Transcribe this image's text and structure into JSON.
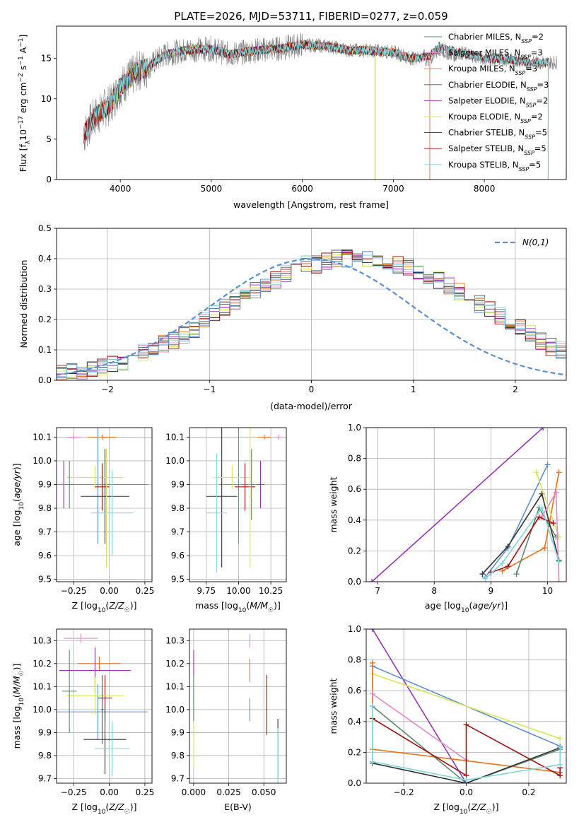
{
  "title": "PLATE=2026, MJD=53711, FIBERID=0277, z=0.059",
  "colors": {
    "chabrier_miles": "#5a8a6a",
    "salpeter_miles": "#e986c9",
    "kroupa_miles": "#e8731a",
    "chabrier_elodie": "#555555",
    "salpeter_elodie": "#9932b8",
    "kroupa_elodie": "#d4e85a",
    "chabrier_stelib": "#333333",
    "salpeter_stelib": "#a01010",
    "kroupa_stelib": "#7fd6dc",
    "gauss": "#5b8fd0"
  },
  "chart_data": [
    {
      "type": "line",
      "id": "spectrum",
      "xlabel": "wavelength [Angstrom, rest frame]",
      "ylabel": "Flux [f_λ10^-17 erg cm^-2 s^-1 A^-1]",
      "xlim": [
        3300,
        8900
      ],
      "ylim": [
        0,
        19
      ],
      "xticks": [
        4000,
        5000,
        6000,
        7000,
        8000
      ],
      "yticks": [
        0,
        5,
        10,
        15
      ],
      "grid": false,
      "legend_position": "top-right",
      "legend": [
        {
          "label": "Chabrier MILES, N",
          "sub": "SSP",
          "suffix": "=2",
          "color_key": "chabrier_miles"
        },
        {
          "label": "Salpeter MILES, N",
          "sub": "SSP",
          "suffix": "=3",
          "color_key": "salpeter_miles"
        },
        {
          "label": "Kroupa MILES, N",
          "sub": "SSP",
          "suffix": "=3",
          "color_key": "kroupa_miles"
        },
        {
          "label": "Chabrier ELODIE, N",
          "sub": "SSP",
          "suffix": "=3",
          "color_key": "chabrier_elodie"
        },
        {
          "label": "Salpeter ELODIE, N",
          "sub": "SSP",
          "suffix": "=2",
          "color_key": "salpeter_elodie"
        },
        {
          "label": "Kroupa ELODIE, N",
          "sub": "SSP",
          "suffix": "=2",
          "color_key": "kroupa_elodie"
        },
        {
          "label": "Chabrier STELIB, N",
          "sub": "SSP",
          "suffix": "=5",
          "color_key": "chabrier_stelib"
        },
        {
          "label": "Salpeter STELIB, N",
          "sub": "SSP",
          "suffix": "=5",
          "color_key": "salpeter_stelib"
        },
        {
          "label": "Kroupa STELIB, N",
          "sub": "SSP",
          "suffix": "=5",
          "color_key": "kroupa_stelib"
        }
      ],
      "continuum": {
        "x": [
          3600,
          3700,
          3800,
          3900,
          4000,
          4100,
          4200,
          4300,
          4400,
          4500,
          4700,
          5000,
          5200,
          5500,
          5800,
          6000,
          6300,
          6500,
          6700,
          7000,
          7200,
          7400,
          7500,
          7700,
          8000,
          8300,
          8500,
          8800
        ],
        "y": [
          5.5,
          7.5,
          8.5,
          9.5,
          11.5,
          12.5,
          13.5,
          13.8,
          14.8,
          15.5,
          16.0,
          16.2,
          15.5,
          16.0,
          16.3,
          16.7,
          16.5,
          16.0,
          16.0,
          15.8,
          15.0,
          15.3,
          16.5,
          15.8,
          15.0,
          14.8,
          14.5,
          14.5
        ]
      }
    },
    {
      "type": "bar",
      "id": "residual-histogram",
      "xlabel": "(data-model)/error",
      "ylabel": "Normed distribution",
      "xlim": [
        -2.5,
        2.5
      ],
      "ylim": [
        0,
        0.5
      ],
      "xticks": [
        -2,
        -1,
        0,
        1,
        2
      ],
      "yticks": [
        0.0,
        0.1,
        0.2,
        0.3,
        0.4,
        0.5
      ],
      "grid": true,
      "legend_position": "top-right",
      "legend_label": "N(0,1)",
      "bin_width": 0.1,
      "series_base": [
        0.02,
        0.03,
        0.03,
        0.04,
        0.04,
        0.05,
        0.06,
        0.08,
        0.09,
        0.11,
        0.12,
        0.13,
        0.15,
        0.17,
        0.2,
        0.22,
        0.24,
        0.26,
        0.28,
        0.3,
        0.32,
        0.33,
        0.35,
        0.36,
        0.38,
        0.38,
        0.39,
        0.4,
        0.4,
        0.41,
        0.4,
        0.4,
        0.39,
        0.38,
        0.37,
        0.36,
        0.34,
        0.33,
        0.31,
        0.29,
        0.27,
        0.25,
        0.23,
        0.21,
        0.19,
        0.17,
        0.15,
        0.13,
        0.11,
        0.1,
        0.08,
        0.07,
        0.06,
        0.05,
        0.04,
        0.04,
        0.03,
        0.03,
        0.03,
        0.02
      ]
    },
    {
      "type": "scatter",
      "id": "age-vs-Z",
      "xlabel": "Z [log10(Z/Z☉)]",
      "ylabel": "age [log10(age/yr)]",
      "xlim": [
        -0.37,
        0.3
      ],
      "ylim": [
        9.49,
        10.14
      ],
      "xticks": [
        -0.25,
        0.0,
        0.25
      ],
      "xticklabels": [
        "−0.25",
        "0.00",
        "0.25"
      ],
      "yticks": [
        9.5,
        9.6,
        9.7,
        9.8,
        9.9,
        10.0,
        10.1
      ],
      "grid": true,
      "points": [
        {
          "x": -0.05,
          "y": 10.1,
          "xerr": 0.1,
          "yerr": 0.01,
          "color_key": "kroupa_miles"
        },
        {
          "x": -0.25,
          "y": 10.1,
          "xerr": 0.05,
          "yerr": 0.01,
          "color_key": "salpeter_miles"
        },
        {
          "x": -0.32,
          "y": 9.9,
          "xerr": 0.02,
          "yerr": 0.1,
          "color_key": "salpeter_elodie"
        },
        {
          "x": -0.08,
          "y": 9.9,
          "xerr": 0.35,
          "yerr": 0.25,
          "color_key": "gauss"
        },
        {
          "x": -0.03,
          "y": 9.85,
          "xerr": 0.17,
          "yerr": 0.2,
          "color_key": "chabrier_stelib"
        },
        {
          "x": 0.02,
          "y": 9.78,
          "xerr": 0.15,
          "yerr": 0.18,
          "color_key": "kroupa_stelib"
        },
        {
          "x": -0.1,
          "y": 9.93,
          "xerr": 0.2,
          "yerr": 0.05,
          "color_key": "kroupa_elodie"
        },
        {
          "x": -0.05,
          "y": 9.89,
          "xerr": 0.05,
          "yerr": 0.1,
          "color_key": "salpeter_stelib"
        },
        {
          "x": -0.28,
          "y": 9.9,
          "xerr": 0.03,
          "yerr": 0.1,
          "color_key": "chabrier_miles"
        },
        {
          "x": -0.02,
          "y": 9.8,
          "xerr": 0.01,
          "yerr": 0.25,
          "color_key": "kroupa_elodie"
        }
      ]
    },
    {
      "type": "scatter",
      "id": "age-vs-mass",
      "xlabel": "mass [log10(M/M☉)]",
      "xlim": [
        9.62,
        10.37
      ],
      "ylim": [
        9.49,
        10.14
      ],
      "xticks": [
        9.75,
        10.0,
        10.25
      ],
      "xticklabels": [
        "9.75",
        "10.00",
        "10.25"
      ],
      "yticks": [
        9.5,
        9.6,
        9.7,
        9.8,
        9.9,
        10.0,
        10.1
      ],
      "grid": true,
      "points": [
        {
          "x": 10.2,
          "y": 10.1,
          "xerr": 0.05,
          "yerr": 0.01,
          "color_key": "kroupa_miles"
        },
        {
          "x": 10.31,
          "y": 10.1,
          "xerr": 0.02,
          "yerr": 0.01,
          "color_key": "salpeter_miles"
        },
        {
          "x": 10.17,
          "y": 9.9,
          "xerr": 0.03,
          "yerr": 0.1,
          "color_key": "salpeter_elodie"
        },
        {
          "x": 10.0,
          "y": 9.9,
          "xerr": 0.15,
          "yerr": 0.25,
          "color_key": "gauss"
        },
        {
          "x": 9.87,
          "y": 9.85,
          "xerr": 0.12,
          "yerr": 0.3,
          "color_key": "chabrier_stelib"
        },
        {
          "x": 9.83,
          "y": 9.78,
          "xerr": 0.08,
          "yerr": 0.25,
          "color_key": "kroupa_stelib"
        },
        {
          "x": 9.95,
          "y": 9.93,
          "xerr": 0.15,
          "yerr": 0.05,
          "color_key": "kroupa_elodie"
        },
        {
          "x": 10.05,
          "y": 9.89,
          "xerr": 0.08,
          "yerr": 0.1,
          "color_key": "salpeter_stelib"
        },
        {
          "x": 10.1,
          "y": 9.9,
          "xerr": 0.02,
          "yerr": 0.15,
          "color_key": "chabrier_miles"
        },
        {
          "x": 10.09,
          "y": 9.85,
          "xerr": 0.01,
          "yerr": 0.3,
          "color_key": "kroupa_elodie"
        }
      ]
    },
    {
      "type": "line",
      "id": "mass-weight-vs-age",
      "xlabel": "age [log10(age/yr)]",
      "ylabel": "mass weight",
      "xlim": [
        6.8,
        10.33
      ],
      "ylim": [
        0,
        1
      ],
      "xticks": [
        7,
        8,
        9,
        10
      ],
      "yticks": [
        0.0,
        0.2,
        0.4,
        0.6,
        0.8,
        1.0
      ],
      "grid": true,
      "series": [
        {
          "color_key": "salpeter_elodie",
          "x": [
            6.9,
            9.92
          ],
          "y": [
            0.0,
            1.0
          ]
        },
        {
          "color_key": "gauss",
          "x": [
            8.9,
            9.3,
            10.0
          ],
          "y": [
            0.03,
            0.22,
            0.76
          ]
        },
        {
          "color_key": "kroupa_miles",
          "x": [
            9.2,
            9.95,
            10.2
          ],
          "y": [
            0.07,
            0.22,
            0.71
          ]
        },
        {
          "color_key": "chabrier_miles",
          "x": [
            9.45,
            9.85,
            10.15
          ],
          "y": [
            0.05,
            0.48,
            0.29
          ]
        },
        {
          "color_key": "chabrier_stelib",
          "x": [
            8.85,
            9.3,
            9.9,
            10.2
          ],
          "y": [
            0.05,
            0.23,
            0.57,
            0.14
          ]
        },
        {
          "color_key": "kroupa_elodie",
          "x": [
            9.8,
            10.2
          ],
          "y": [
            0.71,
            0.29
          ]
        },
        {
          "color_key": "salpeter_miles",
          "x": [
            9.9,
            10.15,
            10.2
          ],
          "y": [
            0.42,
            0.58,
            0.0
          ]
        },
        {
          "color_key": "salpeter_stelib",
          "x": [
            9.0,
            9.3,
            9.85,
            10.1
          ],
          "y": [
            0.06,
            0.1,
            0.42,
            0.38
          ]
        },
        {
          "color_key": "kroupa_stelib",
          "x": [
            8.9,
            9.2,
            9.9,
            10.2
          ],
          "y": [
            0.02,
            0.12,
            0.48,
            0.13
          ]
        }
      ]
    },
    {
      "type": "scatter",
      "id": "mass-vs-Z",
      "xlabel": "Z [log10(Z/Z☉)]",
      "ylabel": "mass [log10(M/M☉)]",
      "xlim": [
        -0.37,
        0.3
      ],
      "ylim": [
        9.68,
        10.35
      ],
      "xticks": [
        -0.25,
        0.0,
        0.25
      ],
      "xticklabels": [
        "−0.25",
        "0.00",
        "0.25"
      ],
      "yticks": [
        9.7,
        9.8,
        9.9,
        10.0,
        10.1,
        10.2,
        10.3
      ],
      "grid": true,
      "points": [
        {
          "x": -0.2,
          "y": 10.31,
          "xerr": 0.12,
          "yerr": 0.02,
          "color_key": "salpeter_miles"
        },
        {
          "x": -0.07,
          "y": 10.2,
          "xerr": 0.15,
          "yerr": 0.03,
          "color_key": "kroupa_miles"
        },
        {
          "x": -0.1,
          "y": 10.17,
          "xerr": 0.25,
          "yerr": 0.1,
          "color_key": "salpeter_elodie"
        },
        {
          "x": -0.08,
          "y": 9.99,
          "xerr": 0.35,
          "yerr": 0.12,
          "color_key": "gauss"
        },
        {
          "x": -0.03,
          "y": 10.05,
          "xerr": 0.05,
          "yerr": 0.1,
          "color_key": "salpeter_stelib"
        },
        {
          "x": -0.1,
          "y": 10.06,
          "xerr": 0.2,
          "yerr": 0.08,
          "color_key": "kroupa_elodie"
        },
        {
          "x": -0.03,
          "y": 9.87,
          "xerr": 0.15,
          "yerr": 0.15,
          "color_key": "chabrier_stelib"
        },
        {
          "x": 0.02,
          "y": 9.83,
          "xerr": 0.12,
          "yerr": 0.12,
          "color_key": "kroupa_stelib"
        },
        {
          "x": -0.28,
          "y": 10.08,
          "xerr": 0.05,
          "yerr": 0.18,
          "color_key": "chabrier_miles"
        },
        {
          "x": -0.05,
          "y": 10.0,
          "xerr": 0.01,
          "yerr": 0.15,
          "color_key": "chabrier_elodie"
        }
      ]
    },
    {
      "type": "scatter",
      "id": "mass-vs-EBV",
      "xlabel": "E(B-V)",
      "xlim": [
        -0.003,
        0.066
      ],
      "ylim": [
        9.68,
        10.35
      ],
      "xticks": [
        0.0,
        0.025,
        0.05
      ],
      "xticklabels": [
        "0.000",
        "0.025",
        "0.050"
      ],
      "yticks": [
        9.7,
        9.8,
        9.9,
        10.0,
        10.1,
        10.2,
        10.3
      ],
      "grid": true,
      "points": [
        {
          "x": 0.04,
          "y": 10.3,
          "yerr": 0.03,
          "color_key": "salpeter_miles"
        },
        {
          "x": 0.04,
          "y": 10.17,
          "yerr": 0.05,
          "color_key": "kroupa_miles"
        },
        {
          "x": 0.0,
          "y": 10.2,
          "yerr": 0.06,
          "color_key": "salpeter_elodie"
        },
        {
          "x": 0.04,
          "y": 10.0,
          "yerr": 0.05,
          "color_key": "gauss"
        },
        {
          "x": 0.052,
          "y": 10.02,
          "yerr": 0.13,
          "color_key": "salpeter_stelib"
        },
        {
          "x": 0.0,
          "y": 10.0,
          "yerr": 0.14,
          "color_key": "kroupa_elodie"
        },
        {
          "x": 0.0,
          "y": 9.85,
          "yerr": 0.1,
          "color_key": "kroupa_elodie"
        },
        {
          "x": 0.0,
          "y": 10.05,
          "yerr": 0.1,
          "color_key": "chabrier_miles"
        },
        {
          "x": 0.06,
          "y": 9.83,
          "yerr": 0.13,
          "color_key": "chabrier_stelib"
        },
        {
          "x": 0.06,
          "y": 9.8,
          "yerr": 0.12,
          "color_key": "kroupa_stelib"
        }
      ]
    },
    {
      "type": "line",
      "id": "mass-weight-vs-Z",
      "xlabel": "Z [log10(Z/Z☉)]",
      "ylabel": "mass weight",
      "xlim": [
        -0.32,
        0.32
      ],
      "ylim": [
        0,
        1
      ],
      "xticks": [
        -0.2,
        0.0,
        0.2
      ],
      "xticklabels": [
        "−0.2",
        "0.0",
        "0.2"
      ],
      "yticks": [
        0.0,
        0.2,
        0.4,
        0.6,
        0.8,
        1.0
      ],
      "grid": true,
      "series": [
        {
          "color_key": "salpeter_elodie",
          "x": [
            -0.3,
            0.0
          ],
          "y": [
            1.0,
            0.0
          ]
        },
        {
          "color_key": "gauss",
          "x": [
            -0.3,
            0.3
          ],
          "y": [
            0.76,
            0.24
          ]
        },
        {
          "color_key": "kroupa_elodie",
          "x": [
            -0.3,
            0.3
          ],
          "y": [
            0.71,
            0.29
          ]
        },
        {
          "color_key": "kroupa_miles",
          "x": [
            -0.3,
            -0.3,
            0.3
          ],
          "y": [
            0.78,
            0.22,
            0.07
          ]
        },
        {
          "color_key": "chabrier_miles",
          "x": [
            -0.3,
            0.0,
            0.3
          ],
          "y": [
            0.5,
            0.0,
            0.22
          ]
        },
        {
          "color_key": "salpeter_miles",
          "x": [
            -0.3,
            0.0
          ],
          "y": [
            0.58,
            0.15
          ]
        },
        {
          "color_key": "salpeter_stelib",
          "x": [
            -0.3,
            0.0,
            0.0,
            0.3,
            0.3
          ],
          "y": [
            0.42,
            0.05,
            0.38,
            0.05,
            0.1
          ]
        },
        {
          "color_key": "chabrier_stelib",
          "x": [
            -0.3,
            0.0,
            0.3
          ],
          "y": [
            0.13,
            0.0,
            0.23
          ]
        },
        {
          "color_key": "kroupa_stelib",
          "x": [
            -0.3,
            -0.3,
            0.0,
            0.3,
            0.3
          ],
          "y": [
            0.5,
            0.14,
            0.02,
            0.12,
            0.23
          ]
        }
      ]
    }
  ]
}
